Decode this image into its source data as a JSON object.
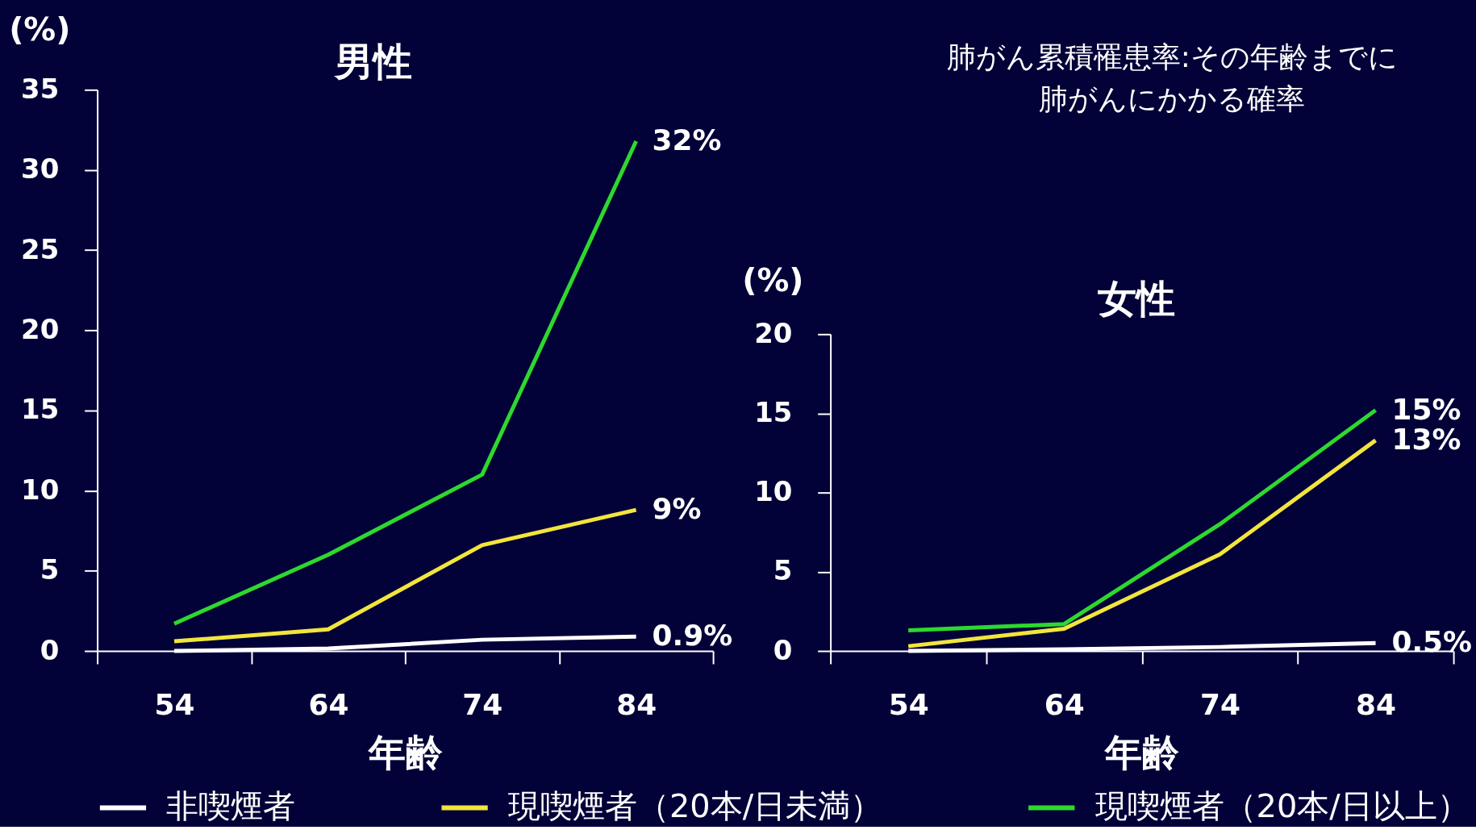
{
  "chart_data": [
    {
      "type": "line",
      "title": "男性",
      "ylabel": "(%)",
      "xlabel": "年齢",
      "categories": [
        "54",
        "64",
        "74",
        "84"
      ],
      "ylim": [
        0,
        35
      ],
      "yticks": [
        0,
        5,
        10,
        15,
        20,
        25,
        30,
        35
      ],
      "legend": "bottom",
      "series": [
        {
          "name": "非喫煙者",
          "color": "#ffffff",
          "values": [
            0,
            0.15,
            0.7,
            0.9
          ],
          "value_labels": [
            null,
            null,
            null,
            "0.9%"
          ]
        },
        {
          "name": "現喫煙者（20本/日未満）",
          "color": "#f2e53c",
          "values": [
            0.6,
            1.35,
            6.6,
            8.8
          ],
          "value_labels": [
            null,
            null,
            null,
            "9%"
          ]
        },
        {
          "name": "現喫煙者（20本/日以上）",
          "color": "#2ed82e",
          "values": [
            1.7,
            6.0,
            11.0,
            31.8
          ],
          "value_labels": [
            null,
            null,
            null,
            "32%"
          ]
        }
      ]
    },
    {
      "type": "line",
      "title": "女性",
      "ylabel": "(%)",
      "xlabel": "年齢",
      "categories": [
        "54",
        "64",
        "74",
        "84"
      ],
      "ylim": [
        0,
        20
      ],
      "yticks": [
        0,
        5,
        10,
        15,
        20
      ],
      "annotations": [
        "肺がん累積罹患率:その年齢までに肺がんにかかる確率"
      ],
      "series": [
        {
          "name": "非喫煙者",
          "color": "#ffffff",
          "values": [
            0,
            0.1,
            0.25,
            0.5
          ],
          "value_labels": [
            null,
            null,
            null,
            "0.5%"
          ]
        },
        {
          "name": "現喫煙者（20本/日未満）",
          "color": "#f2e53c",
          "values": [
            0.3,
            1.4,
            6.1,
            13.3
          ],
          "value_labels": [
            null,
            null,
            null,
            "13%"
          ]
        },
        {
          "name": "現喫煙者（20本/日以上）",
          "color": "#2ed82e",
          "values": [
            1.3,
            1.7,
            8.0,
            15.2
          ],
          "value_labels": [
            null,
            null,
            null,
            "15%"
          ]
        }
      ]
    }
  ]
}
